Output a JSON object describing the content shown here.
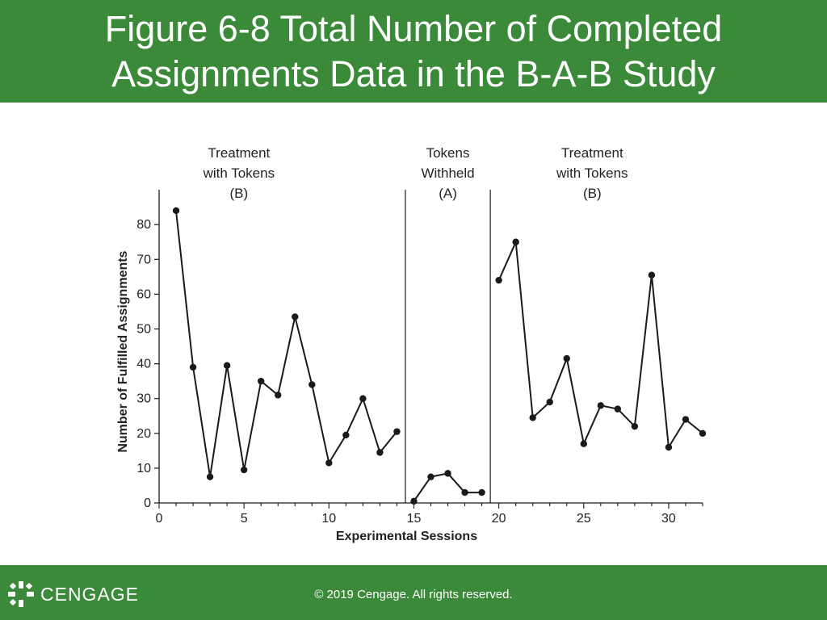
{
  "slide": {
    "title_line1": "Figure 6-8 Total Number of Completed",
    "title_line2": "Assignments Data in the B-A-B Study"
  },
  "footer": {
    "copyright": "© 2019 Cengage. All rights reserved.",
    "brand": "CENGAGE"
  },
  "colors": {
    "band": "#3b8a3a",
    "line": "#1a1a1a"
  },
  "chart_data": {
    "type": "line",
    "xlabel": "Experimental Sessions",
    "ylabel": "Number of Fulfilled Assignments",
    "xlim": [
      0,
      32
    ],
    "ylim": [
      0,
      90
    ],
    "xticks": [
      0,
      5,
      10,
      15,
      20,
      25,
      30
    ],
    "yticks": [
      0,
      10,
      20,
      30,
      40,
      50,
      60,
      70,
      80
    ],
    "grid": false,
    "phase_lines_x": [
      14.5,
      19.5
    ],
    "phases": [
      {
        "lines": [
          "Treatment",
          "with Tokens",
          "(B)"
        ],
        "x_center": 4.7
      },
      {
        "lines": [
          "Tokens",
          "Withheld",
          "(A)"
        ],
        "x_center": 17
      },
      {
        "lines": [
          "Treatment",
          "with Tokens",
          "(B)"
        ],
        "x_center": 25.5
      }
    ],
    "series": [
      {
        "x": [
          1,
          2,
          3,
          4,
          5,
          6,
          7,
          8,
          9,
          10,
          11,
          12,
          13,
          14
        ],
        "y": [
          84,
          39,
          7.5,
          39.5,
          9.5,
          35,
          31,
          53.5,
          34,
          11.5,
          19.5,
          30,
          14.5,
          20.5
        ]
      },
      {
        "x": [
          15,
          16,
          17,
          18,
          19
        ],
        "y": [
          0.5,
          7.5,
          8.5,
          3,
          3
        ]
      },
      {
        "x": [
          20,
          21,
          22,
          23,
          24,
          25,
          26,
          27,
          28,
          29,
          30,
          31,
          32
        ],
        "y": [
          64,
          75,
          24.5,
          29,
          41.5,
          17,
          28,
          27,
          22,
          65.5,
          16,
          24,
          20
        ]
      }
    ]
  }
}
